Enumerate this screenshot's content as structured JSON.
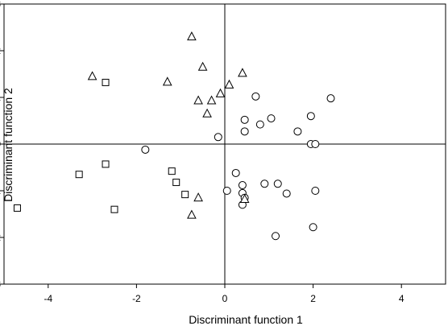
{
  "chart_data": {
    "type": "scatter",
    "xlabel": "Discriminant function 1",
    "ylabel": "Discriminant function 2",
    "xlim": [
      -5,
      5
    ],
    "ylim": [
      -3,
      3
    ],
    "x_ticks": [
      -4,
      -2,
      0,
      2,
      4
    ],
    "y_ticks": [
      -3,
      -2,
      -1,
      0,
      1,
      2,
      3
    ],
    "grid": false,
    "reference_lines": {
      "x": 0,
      "y": 0
    },
    "series": [
      {
        "marker": "circle",
        "points": [
          [
            -1.8,
            -0.12
          ],
          [
            -0.15,
            0.15
          ],
          [
            0.7,
            1.02
          ],
          [
            0.45,
            0.52
          ],
          [
            0.45,
            0.27
          ],
          [
            0.8,
            0.42
          ],
          [
            1.05,
            0.55
          ],
          [
            1.65,
            0.27
          ],
          [
            1.95,
            0.6
          ],
          [
            2.4,
            0.98
          ],
          [
            1.95,
            0.0
          ],
          [
            2.05,
            0.0
          ],
          [
            0.25,
            -0.62
          ],
          [
            0.05,
            -1.0
          ],
          [
            0.4,
            -0.88
          ],
          [
            0.4,
            -1.05
          ],
          [
            0.45,
            -1.15
          ],
          [
            0.4,
            -1.3
          ],
          [
            0.9,
            -0.85
          ],
          [
            1.2,
            -0.85
          ],
          [
            1.4,
            -1.06
          ],
          [
            2.05,
            -1.0
          ],
          [
            1.15,
            -1.97
          ],
          [
            2.0,
            -1.78
          ]
        ]
      },
      {
        "marker": "triangle",
        "points": [
          [
            -0.75,
            2.3
          ],
          [
            -0.5,
            1.65
          ],
          [
            -3.0,
            1.45
          ],
          [
            -1.3,
            1.33
          ],
          [
            0.4,
            1.52
          ],
          [
            0.1,
            1.27
          ],
          [
            -0.1,
            1.08
          ],
          [
            -0.3,
            0.93
          ],
          [
            -0.6,
            0.93
          ],
          [
            -0.4,
            0.65
          ],
          [
            -0.6,
            -1.15
          ],
          [
            -0.75,
            -1.52
          ],
          [
            0.45,
            -1.18
          ]
        ]
      },
      {
        "marker": "square",
        "points": [
          [
            -2.7,
            1.32
          ],
          [
            -2.7,
            -0.43
          ],
          [
            -3.3,
            -0.65
          ],
          [
            -4.7,
            -1.37
          ],
          [
            -2.5,
            -1.4
          ],
          [
            -1.2,
            -0.58
          ],
          [
            -1.1,
            -0.82
          ],
          [
            -0.9,
            -1.08
          ]
        ]
      }
    ]
  }
}
